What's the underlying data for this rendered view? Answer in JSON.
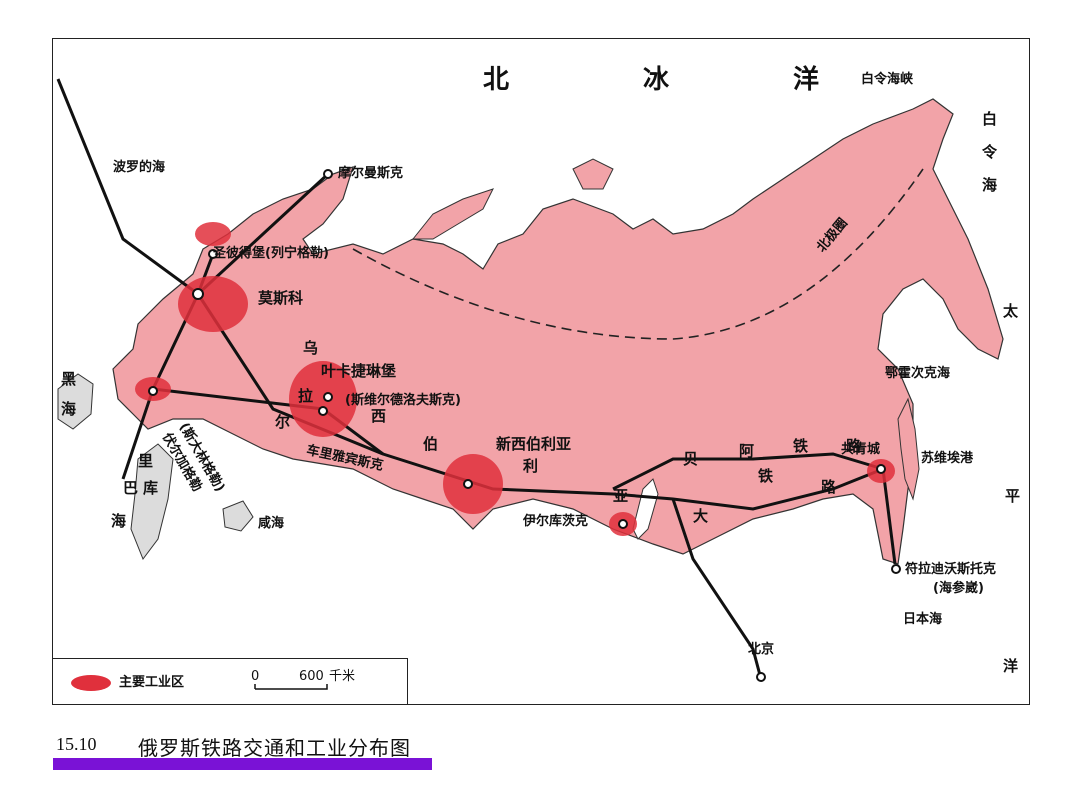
{
  "labels": {
    "arctic_ocean": [
      "北",
      "冰",
      "洋"
    ],
    "bering_strait": "白令海峡",
    "bering_sea": "白令海",
    "pacific": [
      "太",
      "平",
      "洋"
    ],
    "baltic_sea": "波罗的海",
    "murmansk": "摩尔曼斯克",
    "st_petersburg": "圣彼得堡(列宁格勒)",
    "moscow": "莫斯科",
    "ural": [
      "乌",
      "拉",
      "尔"
    ],
    "yekaterinburg": "叶卡捷琳堡",
    "sverdlovsk": "(斯维尔德洛夫斯克)",
    "black_sea": "黑海",
    "caspian": [
      "里",
      "巴",
      "库",
      "海"
    ],
    "volgograd": "伏尔加格勒",
    "stalingrad": "(斯大林格勒)",
    "chelyabinsk": "车里雅宾斯克",
    "xianhai": "咸海",
    "siberia": [
      "西",
      "伯",
      "利",
      "亚"
    ],
    "novosibirsk": "新西伯利亚",
    "irkutsk": "伊尔库茨克",
    "bam": [
      "贝",
      "阿",
      "铁",
      "路"
    ],
    "transsib": [
      "大",
      "铁",
      "路"
    ],
    "komsomolsk": "共青城",
    "sovgavan": "苏维埃港",
    "okhotsk": "鄂霍次克海",
    "arctic_circle": "北极圈",
    "vladivostok": "符拉迪沃斯托克",
    "haishenwei": "(海参崴)",
    "japan_sea": "日本海",
    "beijing": "北京"
  },
  "legend": {
    "item": "主要工业区",
    "scale_zero": "0",
    "scale_value": "600",
    "scale_unit": "千米"
  },
  "caption": {
    "number": "15.10",
    "title": "俄罗斯铁路交通和工业分布图"
  },
  "colors": {
    "land_russia": "#f2a3a8",
    "industrial": "#e0303c",
    "caption_bar": "#7a12d6"
  }
}
